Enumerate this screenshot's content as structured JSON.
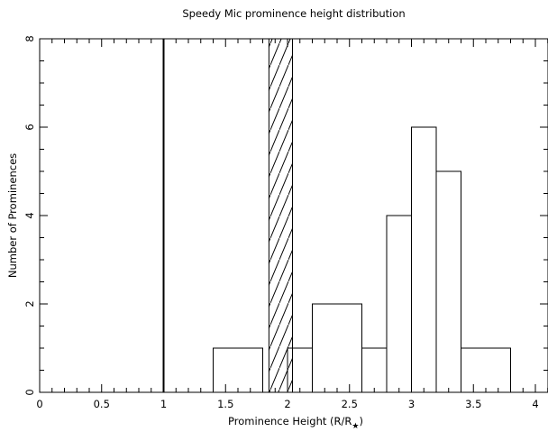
{
  "chart_data": {
    "type": "bar",
    "title": "Speedy Mic prominence height distribution",
    "xlabel": "Prominence Height (R/R",
    "xlabel_subscript": "★",
    "xlabel_close": ")",
    "ylabel": "Number of Prominences",
    "xlim": [
      0,
      4.1
    ],
    "ylim": [
      0,
      8
    ],
    "x_ticks": [
      "0",
      "0.5",
      "1",
      "1.5",
      "2",
      "2.5",
      "3",
      "3.5",
      "4"
    ],
    "y_ticks": [
      "0",
      "2",
      "4",
      "6",
      "8"
    ],
    "bins": [
      {
        "x0": 1.4,
        "x1": 1.8,
        "count": 1
      },
      {
        "x0": 1.8,
        "x1": 2.0,
        "count": 0
      },
      {
        "x0": 2.0,
        "x1": 2.2,
        "count": 1
      },
      {
        "x0": 2.2,
        "x1": 2.6,
        "count": 2
      },
      {
        "x0": 2.6,
        "x1": 2.8,
        "count": 1
      },
      {
        "x0": 2.8,
        "x1": 3.0,
        "count": 4
      },
      {
        "x0": 3.0,
        "x1": 3.2,
        "count": 6
      },
      {
        "x0": 3.2,
        "x1": 3.4,
        "count": 5
      },
      {
        "x0": 3.4,
        "x1": 3.8,
        "count": 1
      }
    ],
    "stellar_surface_x": 1.0,
    "hatched_region": [
      1.85,
      2.04
    ],
    "grid": false,
    "legend": "none"
  }
}
